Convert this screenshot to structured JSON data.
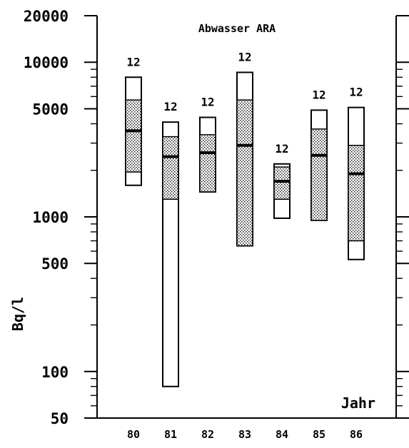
{
  "chart_data": {
    "type": "boxplot",
    "title": "Abwasser ARA",
    "ylabel": "Bq/l",
    "xlabel": "Jahr",
    "yscale": "log",
    "ylim": [
      50,
      20000
    ],
    "yticks": [
      50,
      100,
      500,
      1000,
      5000,
      10000,
      20000
    ],
    "ytick_labels": [
      "50",
      "100",
      "500",
      "1000",
      "5000",
      "10000",
      "20000"
    ],
    "categories": [
      "80",
      "81",
      "82",
      "83",
      "84",
      "85",
      "86"
    ],
    "n_labels": [
      "12",
      "12",
      "12",
      "12",
      "12",
      "12",
      "12"
    ],
    "boxes": [
      {
        "min": 1600,
        "q1": 1950,
        "median": 3600,
        "q3": 5700,
        "max": 8000
      },
      {
        "min": 80,
        "q1": 1300,
        "median": 2450,
        "q3": 3300,
        "max": 4100
      },
      {
        "min": 1450,
        "q1": 1450,
        "median": 2600,
        "q3": 3400,
        "max": 4400
      },
      {
        "min": 650,
        "q1": 650,
        "median": 2900,
        "q3": 5700,
        "max": 8600
      },
      {
        "min": 980,
        "q1": 1300,
        "median": 1700,
        "q3": 2100,
        "max": 2200
      },
      {
        "min": 950,
        "q1": 950,
        "median": 2500,
        "q3": 3700,
        "max": 4900
      },
      {
        "min": 530,
        "q1": 700,
        "median": 1900,
        "q3": 2900,
        "max": 5100
      }
    ],
    "grid": false,
    "legend": "none"
  }
}
